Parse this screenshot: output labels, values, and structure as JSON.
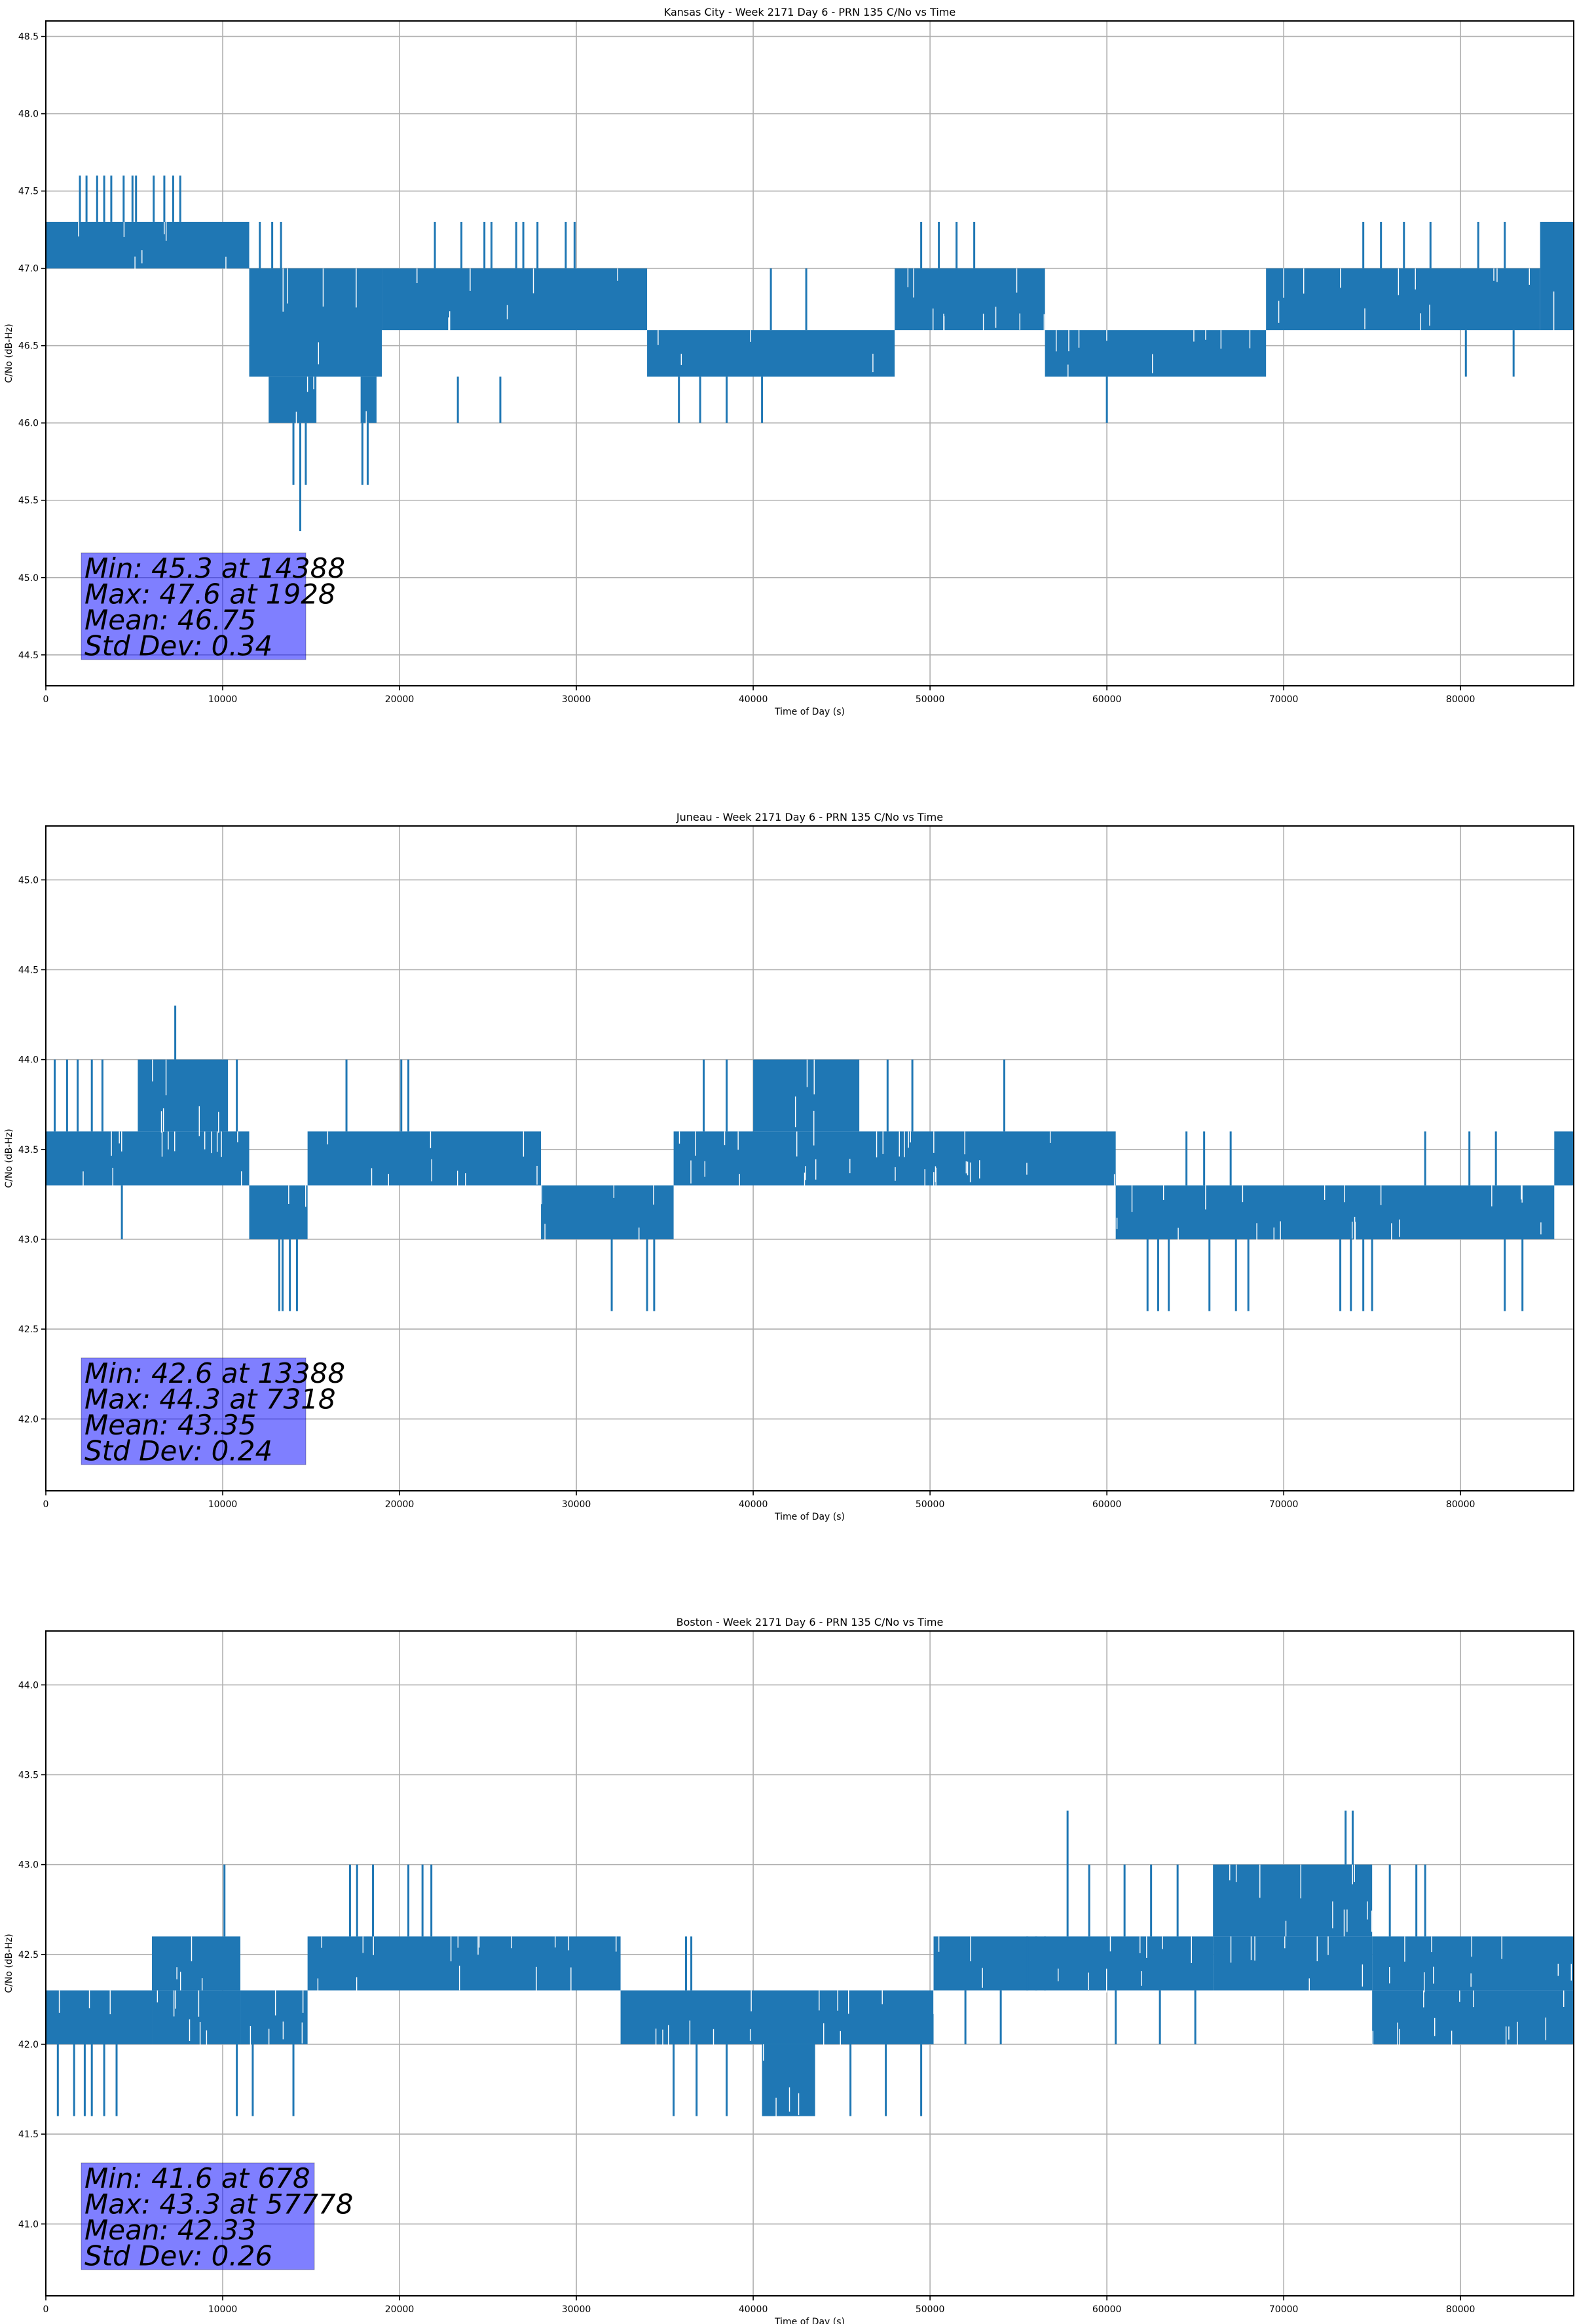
{
  "figure": {
    "series_color": "#1f77b4",
    "stats_box_color": "#0000ff"
  },
  "chart_data": [
    {
      "type": "line",
      "title": "Kansas City - Week 2171 Day 6 - PRN 135 C/No vs Time",
      "xlabel": "Time of Day (s)",
      "ylabel": "C/No (dB-Hz)",
      "xlim": [
        0,
        86400
      ],
      "ylim": [
        44.3,
        48.6
      ],
      "xticks": [
        0,
        10000,
        20000,
        30000,
        40000,
        50000,
        60000,
        70000,
        80000
      ],
      "xtick_labels": [
        "0",
        "10000",
        "20000",
        "30000",
        "40000",
        "50000",
        "60000",
        "70000",
        "80000"
      ],
      "yticks": [
        44.5,
        45.0,
        45.5,
        46.0,
        46.5,
        47.0,
        47.5,
        48.0,
        48.5
      ],
      "ytick_labels": [
        "44.5",
        "45.0",
        "45.5",
        "46.0",
        "46.5",
        "47.0",
        "47.5",
        "48.0",
        "48.5"
      ],
      "grid": true,
      "bands": [
        {
          "x": [
            0,
            11500
          ],
          "lo": 47.0,
          "hi": 47.3
        },
        {
          "x": [
            11500,
            19000
          ],
          "lo": 46.3,
          "hi": 47.0
        },
        {
          "x": [
            12600,
            15300
          ],
          "lo": 46.0,
          "hi": 46.3
        },
        {
          "x": [
            17800,
            18700
          ],
          "lo": 46.0,
          "hi": 46.3
        },
        {
          "x": [
            19000,
            34000
          ],
          "lo": 46.6,
          "hi": 47.0
        },
        {
          "x": [
            34000,
            48000
          ],
          "lo": 46.3,
          "hi": 46.6
        },
        {
          "x": [
            48000,
            56500
          ],
          "lo": 46.6,
          "hi": 47.0
        },
        {
          "x": [
            56500,
            69000
          ],
          "lo": 46.3,
          "hi": 46.6
        },
        {
          "x": [
            69000,
            84500
          ],
          "lo": 46.6,
          "hi": 47.0
        },
        {
          "x": [
            84500,
            86400
          ],
          "lo": 46.6,
          "hi": 47.3
        }
      ],
      "spikes": [
        {
          "x": 1928,
          "lo": 47.3,
          "hi": 47.6
        },
        {
          "x": 2300,
          "lo": 47.3,
          "hi": 47.6
        },
        {
          "x": 2900,
          "lo": 47.3,
          "hi": 47.6
        },
        {
          "x": 3300,
          "lo": 47.3,
          "hi": 47.6
        },
        {
          "x": 3700,
          "lo": 47.3,
          "hi": 47.6
        },
        {
          "x": 4400,
          "lo": 47.3,
          "hi": 47.6
        },
        {
          "x": 4900,
          "lo": 47.3,
          "hi": 47.6
        },
        {
          "x": 5100,
          "lo": 47.3,
          "hi": 47.6
        },
        {
          "x": 6100,
          "lo": 47.3,
          "hi": 47.6
        },
        {
          "x": 6700,
          "lo": 47.3,
          "hi": 47.6
        },
        {
          "x": 7200,
          "lo": 47.3,
          "hi": 47.6
        },
        {
          "x": 7600,
          "lo": 47.3,
          "hi": 47.6
        },
        {
          "x": 12100,
          "lo": 47.0,
          "hi": 47.3
        },
        {
          "x": 12800,
          "lo": 47.0,
          "hi": 47.3
        },
        {
          "x": 13300,
          "lo": 47.0,
          "hi": 47.3
        },
        {
          "x": 14388,
          "lo": 45.3,
          "hi": 46.0
        },
        {
          "x": 14000,
          "lo": 45.6,
          "hi": 46.0
        },
        {
          "x": 14700,
          "lo": 45.6,
          "hi": 46.0
        },
        {
          "x": 17900,
          "lo": 45.6,
          "hi": 46.0
        },
        {
          "x": 18200,
          "lo": 45.6,
          "hi": 46.0
        },
        {
          "x": 22000,
          "lo": 47.0,
          "hi": 47.3
        },
        {
          "x": 23500,
          "lo": 47.0,
          "hi": 47.3
        },
        {
          "x": 24800,
          "lo": 47.0,
          "hi": 47.3
        },
        {
          "x": 25200,
          "lo": 47.0,
          "hi": 47.3
        },
        {
          "x": 26600,
          "lo": 47.0,
          "hi": 47.3
        },
        {
          "x": 27000,
          "lo": 47.0,
          "hi": 47.3
        },
        {
          "x": 27800,
          "lo": 47.0,
          "hi": 47.3
        },
        {
          "x": 29400,
          "lo": 47.0,
          "hi": 47.3
        },
        {
          "x": 29900,
          "lo": 47.0,
          "hi": 47.3
        },
        {
          "x": 23300,
          "lo": 46.0,
          "hi": 46.3
        },
        {
          "x": 25700,
          "lo": 46.0,
          "hi": 46.3
        },
        {
          "x": 35800,
          "lo": 46.0,
          "hi": 46.3
        },
        {
          "x": 37000,
          "lo": 46.0,
          "hi": 46.3
        },
        {
          "x": 38500,
          "lo": 46.0,
          "hi": 46.3
        },
        {
          "x": 40500,
          "lo": 46.0,
          "hi": 46.3
        },
        {
          "x": 41000,
          "lo": 46.6,
          "hi": 47.0
        },
        {
          "x": 43000,
          "lo": 46.6,
          "hi": 47.0
        },
        {
          "x": 49500,
          "lo": 47.0,
          "hi": 47.3
        },
        {
          "x": 50500,
          "lo": 47.0,
          "hi": 47.3
        },
        {
          "x": 51500,
          "lo": 47.0,
          "hi": 47.3
        },
        {
          "x": 52500,
          "lo": 47.0,
          "hi": 47.3
        },
        {
          "x": 60000,
          "lo": 46.0,
          "hi": 46.3
        },
        {
          "x": 74500,
          "lo": 47.0,
          "hi": 47.3
        },
        {
          "x": 75500,
          "lo": 47.0,
          "hi": 47.3
        },
        {
          "x": 76800,
          "lo": 47.0,
          "hi": 47.3
        },
        {
          "x": 78300,
          "lo": 47.0,
          "hi": 47.3
        },
        {
          "x": 81000,
          "lo": 47.0,
          "hi": 47.3
        },
        {
          "x": 82500,
          "lo": 47.0,
          "hi": 47.3
        },
        {
          "x": 80300,
          "lo": 46.3,
          "hi": 46.6
        },
        {
          "x": 83000,
          "lo": 46.3,
          "hi": 46.6
        }
      ],
      "stats": {
        "min_label": "Min: 45.3 at 14388",
        "max_label": "Max: 47.6 at 1928",
        "mean_label": "Mean: 46.75",
        "std_label": "Std Dev: 0.34",
        "min": 45.3,
        "min_time": 14388,
        "max": 47.6,
        "max_time": 1928,
        "mean": 46.75,
        "std_dev": 0.34
      }
    },
    {
      "type": "line",
      "title": "Juneau - Week 2171 Day 6 - PRN 135 C/No vs Time",
      "xlabel": "Time of Day (s)",
      "ylabel": "C/No (dB-Hz)",
      "xlim": [
        0,
        86400
      ],
      "ylim": [
        41.6,
        45.3
      ],
      "xticks": [
        0,
        10000,
        20000,
        30000,
        40000,
        50000,
        60000,
        70000,
        80000
      ],
      "xtick_labels": [
        "0",
        "10000",
        "20000",
        "30000",
        "40000",
        "50000",
        "60000",
        "70000",
        "80000"
      ],
      "yticks": [
        42.0,
        42.5,
        43.0,
        43.5,
        44.0,
        44.5,
        45.0
      ],
      "ytick_labels": [
        "42.0",
        "42.5",
        "43.0",
        "43.5",
        "44.0",
        "44.5",
        "45.0"
      ],
      "grid": true,
      "bands": [
        {
          "x": [
            0,
            11500
          ],
          "lo": 43.3,
          "hi": 43.6
        },
        {
          "x": [
            5200,
            10300
          ],
          "lo": 43.6,
          "hi": 44.0
        },
        {
          "x": [
            11500,
            14800
          ],
          "lo": 43.0,
          "hi": 43.3
        },
        {
          "x": [
            14800,
            28000
          ],
          "lo": 43.3,
          "hi": 43.6
        },
        {
          "x": [
            28000,
            35500
          ],
          "lo": 43.0,
          "hi": 43.3
        },
        {
          "x": [
            35500,
            60500
          ],
          "lo": 43.3,
          "hi": 43.6
        },
        {
          "x": [
            40000,
            46000
          ],
          "lo": 43.6,
          "hi": 44.0
        },
        {
          "x": [
            60500,
            85300
          ],
          "lo": 43.0,
          "hi": 43.3
        },
        {
          "x": [
            85300,
            86400
          ],
          "lo": 43.3,
          "hi": 43.6
        }
      ],
      "spikes": [
        {
          "x": 7318,
          "lo": 44.0,
          "hi": 44.3
        },
        {
          "x": 4300,
          "lo": 43.0,
          "hi": 43.3
        },
        {
          "x": 500,
          "lo": 43.6,
          "hi": 44.0
        },
        {
          "x": 1200,
          "lo": 43.6,
          "hi": 44.0
        },
        {
          "x": 1800,
          "lo": 43.6,
          "hi": 44.0
        },
        {
          "x": 2600,
          "lo": 43.6,
          "hi": 44.0
        },
        {
          "x": 3200,
          "lo": 43.6,
          "hi": 44.0
        },
        {
          "x": 10800,
          "lo": 43.6,
          "hi": 44.0
        },
        {
          "x": 13200,
          "lo": 42.6,
          "hi": 43.0
        },
        {
          "x": 13388,
          "lo": 42.6,
          "hi": 43.0
        },
        {
          "x": 13800,
          "lo": 42.6,
          "hi": 43.0
        },
        {
          "x": 14200,
          "lo": 42.6,
          "hi": 43.0
        },
        {
          "x": 17000,
          "lo": 43.6,
          "hi": 44.0
        },
        {
          "x": 20100,
          "lo": 43.6,
          "hi": 44.0
        },
        {
          "x": 20500,
          "lo": 43.6,
          "hi": 44.0
        },
        {
          "x": 32000,
          "lo": 42.6,
          "hi": 43.0
        },
        {
          "x": 34000,
          "lo": 42.6,
          "hi": 43.0
        },
        {
          "x": 34400,
          "lo": 42.6,
          "hi": 43.0
        },
        {
          "x": 37200,
          "lo": 43.6,
          "hi": 44.0
        },
        {
          "x": 38500,
          "lo": 43.6,
          "hi": 44.0
        },
        {
          "x": 47600,
          "lo": 43.6,
          "hi": 44.0
        },
        {
          "x": 49000,
          "lo": 43.6,
          "hi": 44.0
        },
        {
          "x": 54200,
          "lo": 43.6,
          "hi": 44.0
        },
        {
          "x": 62300,
          "lo": 42.6,
          "hi": 43.0
        },
        {
          "x": 62900,
          "lo": 42.6,
          "hi": 43.0
        },
        {
          "x": 63500,
          "lo": 42.6,
          "hi": 43.0
        },
        {
          "x": 65800,
          "lo": 42.6,
          "hi": 43.0
        },
        {
          "x": 67300,
          "lo": 42.6,
          "hi": 43.0
        },
        {
          "x": 68000,
          "lo": 42.6,
          "hi": 43.0
        },
        {
          "x": 73200,
          "lo": 42.6,
          "hi": 43.0
        },
        {
          "x": 73800,
          "lo": 42.6,
          "hi": 43.0
        },
        {
          "x": 74500,
          "lo": 42.6,
          "hi": 43.0
        },
        {
          "x": 75000,
          "lo": 42.6,
          "hi": 43.0
        },
        {
          "x": 82500,
          "lo": 42.6,
          "hi": 43.0
        },
        {
          "x": 83500,
          "lo": 42.6,
          "hi": 43.0
        },
        {
          "x": 64500,
          "lo": 43.3,
          "hi": 43.6
        },
        {
          "x": 65500,
          "lo": 43.3,
          "hi": 43.6
        },
        {
          "x": 67000,
          "lo": 43.3,
          "hi": 43.6
        },
        {
          "x": 78000,
          "lo": 43.3,
          "hi": 43.6
        },
        {
          "x": 80500,
          "lo": 43.3,
          "hi": 43.6
        },
        {
          "x": 82000,
          "lo": 43.3,
          "hi": 43.6
        }
      ],
      "stats": {
        "min_label": "Min: 42.6 at 13388",
        "max_label": "Max: 44.3 at 7318",
        "mean_label": "Mean: 43.35",
        "std_label": "Std Dev: 0.24",
        "min": 42.6,
        "min_time": 13388,
        "max": 44.3,
        "max_time": 7318,
        "mean": 43.35,
        "std_dev": 0.24
      }
    },
    {
      "type": "line",
      "title": "Boston - Week 2171 Day 6 - PRN 135 C/No vs Time",
      "xlabel": "Time of Day (s)",
      "ylabel": "C/No (dB-Hz)",
      "xlim": [
        0,
        86400
      ],
      "ylim": [
        40.6,
        44.3
      ],
      "xticks": [
        0,
        10000,
        20000,
        30000,
        40000,
        50000,
        60000,
        70000,
        80000
      ],
      "xtick_labels": [
        "0",
        "10000",
        "20000",
        "30000",
        "40000",
        "50000",
        "60000",
        "70000",
        "80000"
      ],
      "yticks": [
        41.0,
        41.5,
        42.0,
        42.5,
        43.0,
        43.5,
        44.0
      ],
      "ytick_labels": [
        "41.0",
        "41.5",
        "42.0",
        "42.5",
        "43.0",
        "43.5",
        "44.0"
      ],
      "grid": true,
      "bands": [
        {
          "x": [
            0,
            6000
          ],
          "lo": 42.0,
          "hi": 42.3
        },
        {
          "x": [
            6000,
            11000
          ],
          "lo": 42.3,
          "hi": 42.6
        },
        {
          "x": [
            6000,
            11000
          ],
          "lo": 42.0,
          "hi": 42.3
        },
        {
          "x": [
            11000,
            14800
          ],
          "lo": 42.0,
          "hi": 42.3
        },
        {
          "x": [
            14800,
            32500
          ],
          "lo": 42.3,
          "hi": 42.6
        },
        {
          "x": [
            32500,
            50200
          ],
          "lo": 42.0,
          "hi": 42.3
        },
        {
          "x": [
            40500,
            43500
          ],
          "lo": 41.6,
          "hi": 42.0
        },
        {
          "x": [
            50200,
            66000
          ],
          "lo": 42.3,
          "hi": 42.6
        },
        {
          "x": [
            66000,
            75000
          ],
          "lo": 42.6,
          "hi": 43.0
        },
        {
          "x": [
            66000,
            75000
          ],
          "lo": 42.3,
          "hi": 42.6
        },
        {
          "x": [
            75000,
            86400
          ],
          "lo": 42.0,
          "hi": 42.3
        },
        {
          "x": [
            75000,
            86400
          ],
          "lo": 42.3,
          "hi": 42.6
        }
      ],
      "spikes": [
        {
          "x": 678,
          "lo": 41.6,
          "hi": 42.0
        },
        {
          "x": 1600,
          "lo": 41.6,
          "hi": 42.0
        },
        {
          "x": 2200,
          "lo": 41.6,
          "hi": 42.0
        },
        {
          "x": 2600,
          "lo": 41.6,
          "hi": 42.0
        },
        {
          "x": 3300,
          "lo": 41.6,
          "hi": 42.0
        },
        {
          "x": 4000,
          "lo": 41.6,
          "hi": 42.0
        },
        {
          "x": 10100,
          "lo": 42.6,
          "hi": 43.0
        },
        {
          "x": 10800,
          "lo": 41.6,
          "hi": 42.0
        },
        {
          "x": 11700,
          "lo": 41.6,
          "hi": 42.0
        },
        {
          "x": 14000,
          "lo": 41.6,
          "hi": 42.0
        },
        {
          "x": 17200,
          "lo": 42.6,
          "hi": 43.0
        },
        {
          "x": 17600,
          "lo": 42.6,
          "hi": 43.0
        },
        {
          "x": 18500,
          "lo": 42.6,
          "hi": 43.0
        },
        {
          "x": 20500,
          "lo": 42.6,
          "hi": 43.0
        },
        {
          "x": 21300,
          "lo": 42.6,
          "hi": 43.0
        },
        {
          "x": 21800,
          "lo": 42.6,
          "hi": 43.0
        },
        {
          "x": 35500,
          "lo": 41.6,
          "hi": 42.0
        },
        {
          "x": 36800,
          "lo": 41.6,
          "hi": 42.0
        },
        {
          "x": 38500,
          "lo": 41.6,
          "hi": 42.0
        },
        {
          "x": 45500,
          "lo": 41.6,
          "hi": 42.0
        },
        {
          "x": 47500,
          "lo": 41.6,
          "hi": 42.0
        },
        {
          "x": 49500,
          "lo": 41.6,
          "hi": 42.0
        },
        {
          "x": 36200,
          "lo": 42.3,
          "hi": 42.6
        },
        {
          "x": 36500,
          "lo": 42.3,
          "hi": 42.6
        },
        {
          "x": 57778,
          "lo": 42.6,
          "hi": 43.3
        },
        {
          "x": 55500,
          "lo": 42.3,
          "hi": 42.6
        },
        {
          "x": 56000,
          "lo": 42.3,
          "hi": 42.6
        },
        {
          "x": 56500,
          "lo": 42.3,
          "hi": 42.6
        },
        {
          "x": 59000,
          "lo": 42.6,
          "hi": 43.0
        },
        {
          "x": 61000,
          "lo": 42.6,
          "hi": 43.0
        },
        {
          "x": 62500,
          "lo": 42.6,
          "hi": 43.0
        },
        {
          "x": 64000,
          "lo": 42.6,
          "hi": 43.0
        },
        {
          "x": 73500,
          "lo": 43.0,
          "hi": 43.3
        },
        {
          "x": 73900,
          "lo": 43.0,
          "hi": 43.3
        },
        {
          "x": 76000,
          "lo": 42.6,
          "hi": 43.0
        },
        {
          "x": 77500,
          "lo": 42.6,
          "hi": 43.0
        },
        {
          "x": 78000,
          "lo": 42.6,
          "hi": 43.0
        },
        {
          "x": 52000,
          "lo": 42.0,
          "hi": 42.3
        },
        {
          "x": 54000,
          "lo": 42.0,
          "hi": 42.3
        },
        {
          "x": 60500,
          "lo": 42.0,
          "hi": 42.3
        },
        {
          "x": 63000,
          "lo": 42.0,
          "hi": 42.3
        },
        {
          "x": 65000,
          "lo": 42.0,
          "hi": 42.3
        }
      ],
      "stats": {
        "min_label": "Min: 41.6 at 678",
        "max_label": "Max: 43.3 at 57778",
        "mean_label": "Mean: 42.33",
        "std_label": "Std Dev: 0.26",
        "min": 41.6,
        "min_time": 678,
        "max": 43.3,
        "max_time": 57778,
        "mean": 42.33,
        "std_dev": 0.26
      }
    }
  ]
}
